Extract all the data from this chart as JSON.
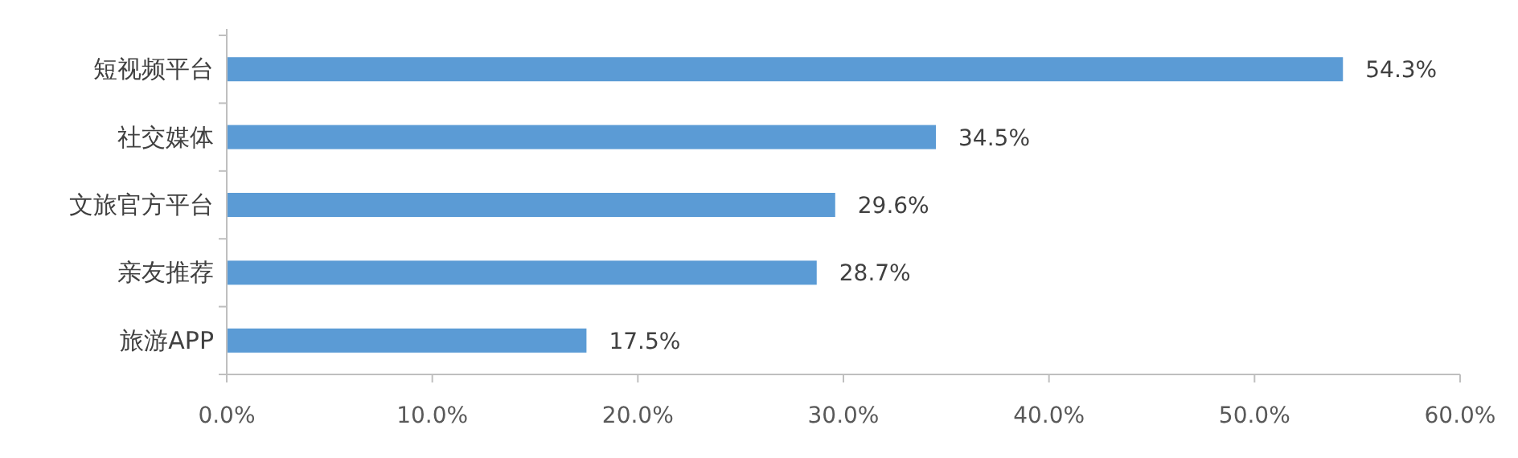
{
  "chart_data": {
    "type": "bar",
    "orientation": "horizontal",
    "categories": [
      "短视频平台",
      "社交媒体",
      "文旅官方平台",
      "亲友推荐",
      "旅游APP"
    ],
    "values": [
      54.3,
      34.5,
      29.6,
      28.7,
      17.5
    ],
    "value_labels": [
      "54.3%",
      "34.5%",
      "29.6%",
      "28.7%",
      "17.5%"
    ],
    "color": "#5b9bd5",
    "xlim": [
      0,
      60
    ],
    "xticks": [
      {
        "value": 0,
        "label": "0.0%"
      },
      {
        "value": 10,
        "label": "10.0%"
      },
      {
        "value": 20,
        "label": "20.0%"
      },
      {
        "value": 30,
        "label": "30.0%"
      },
      {
        "value": 40,
        "label": "40.0%"
      },
      {
        "value": 50,
        "label": "50.0%"
      },
      {
        "value": 60,
        "label": "60.0%"
      }
    ],
    "grid": false
  }
}
